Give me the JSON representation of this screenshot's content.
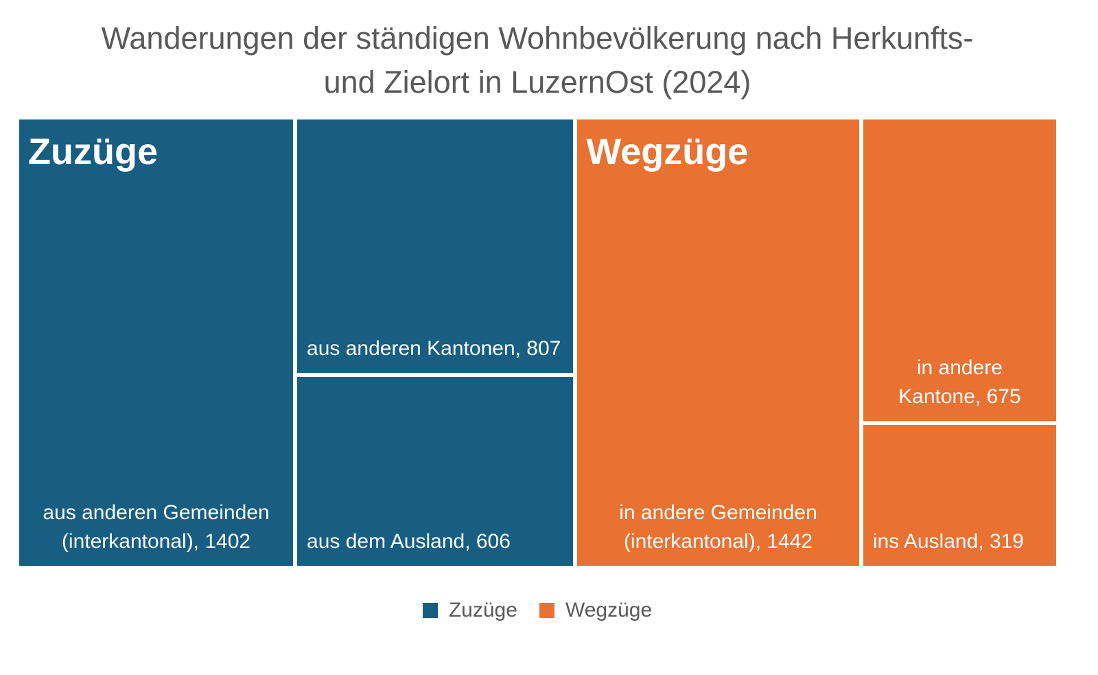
{
  "chart_data": {
    "type": "treemap",
    "title": [
      "Wanderungen der ständigen Wohnbevölkerung nach Herkunfts-",
      "und Zielort in LuzernOst (2024)"
    ],
    "legend": "bottom",
    "series": [
      {
        "name": "Zuzüge",
        "color": "#175e82",
        "values": [
          1402,
          807,
          606
        ],
        "value_labels": [
          "aus anderen Gemeinden (interkantonal), 1402",
          "aus anderen Kantonen, 807",
          "aus dem Ausland, 606"
        ]
      },
      {
        "name": "Wegzüge",
        "color": "#e97132",
        "values": [
          1442,
          675,
          319
        ],
        "value_labels": [
          "in andere Gemeinden (interkantonal), 1442",
          "in andere Kantone, 675",
          "ins Ausland, 319"
        ]
      }
    ]
  }
}
